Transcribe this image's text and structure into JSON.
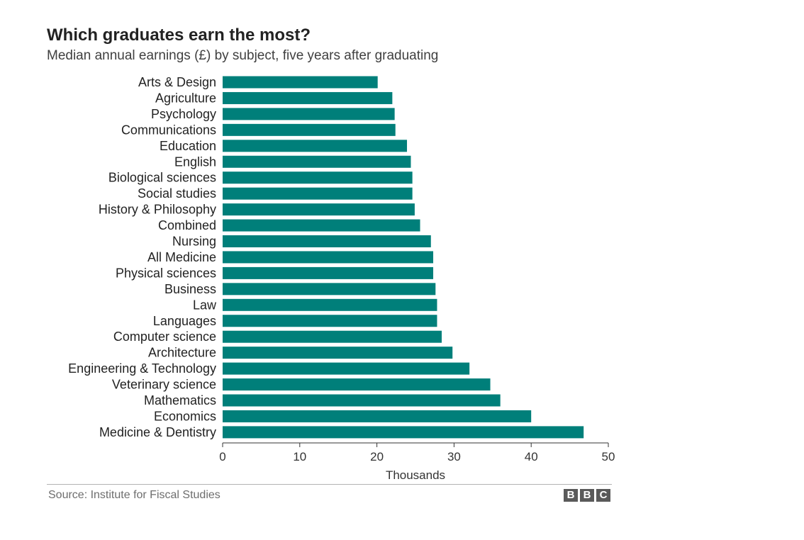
{
  "header": {
    "title": "Which graduates earn the most?",
    "subtitle": "Median annual earnings (£) by subject, five years after graduating"
  },
  "footer": {
    "source": "Source: Institute for Fiscal Studies",
    "logo_letters": [
      "B",
      "B",
      "C"
    ]
  },
  "colors": {
    "bar": "#007f7a",
    "axis": "#333333",
    "text": "#222222"
  },
  "chart_data": {
    "type": "bar",
    "orientation": "horizontal",
    "title": "Which graduates earn the most?",
    "subtitle": "Median annual earnings (£) by subject, five years after graduating",
    "xlabel": "Thousands",
    "ylabel": "",
    "xlim": [
      0,
      50
    ],
    "xticks": [
      "0",
      "10",
      "20",
      "30",
      "40",
      "50"
    ],
    "grid": false,
    "categories": [
      "Arts & Design",
      "Agriculture",
      "Psychology",
      "Communications",
      "Education",
      "English",
      "Biological sciences",
      "Social studies",
      "History & Philosophy",
      "Combined",
      "Nursing",
      "All Medicine",
      "Physical sciences",
      "Business",
      "Law",
      "Languages",
      "Computer science",
      "Architecture",
      "Engineering & Technology",
      "Veterinary science",
      "Mathematics",
      "Economics",
      "Medicine & Dentistry"
    ],
    "values": [
      20.1,
      22.0,
      22.3,
      22.4,
      23.9,
      24.4,
      24.6,
      24.6,
      24.9,
      25.6,
      27.0,
      27.3,
      27.3,
      27.6,
      27.8,
      27.8,
      28.4,
      29.8,
      32.0,
      34.7,
      36.0,
      40.0,
      46.8
    ]
  }
}
